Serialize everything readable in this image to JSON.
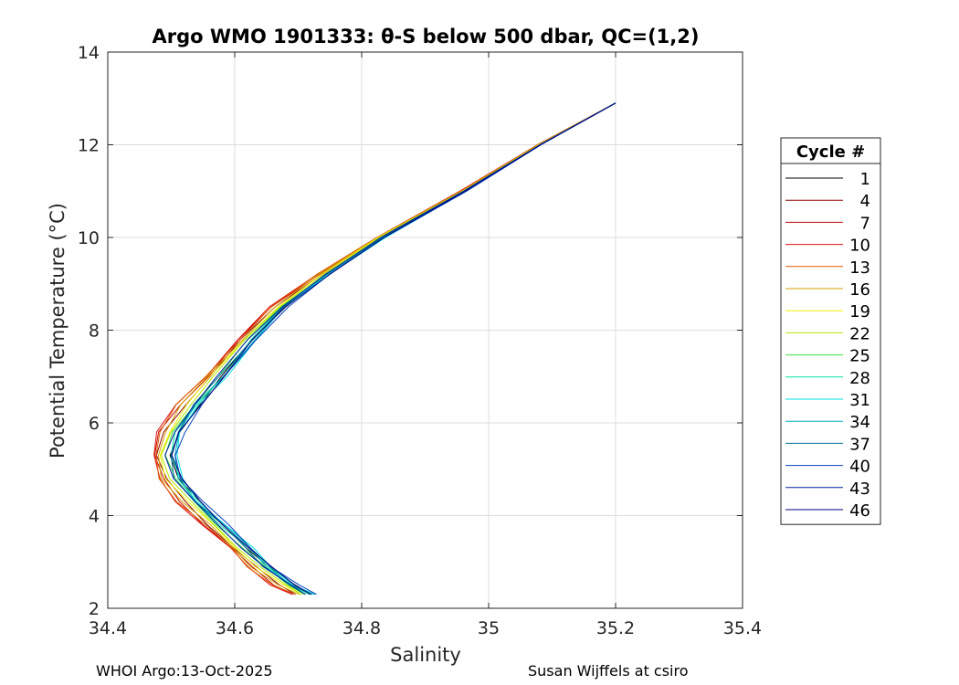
{
  "chart_data": {
    "type": "line",
    "title": "Argo WMO 1901333: θ-S below 500 dbar,  QC=(1,2)",
    "xlabel": "Salinity",
    "ylabel": "Potential Temperature (°C)",
    "xlim": [
      34.4,
      35.4
    ],
    "ylim": [
      2,
      14
    ],
    "xticks": [
      34.4,
      34.6,
      34.8,
      35,
      35.2,
      35.4
    ],
    "xtick_labels": [
      "34.4",
      "34.6",
      "34.8",
      "35",
      "35.2",
      "35.4"
    ],
    "yticks": [
      2,
      4,
      6,
      8,
      10,
      12,
      14
    ],
    "ytick_labels": [
      "2",
      "4",
      "6",
      "8",
      "10",
      "12",
      "14"
    ],
    "grid": true,
    "legend_title": "Cycle #",
    "legend_position": "right",
    "series": [
      {
        "name": "1",
        "color": "#000000",
        "offset": 0.012
      },
      {
        "name": "4",
        "color": "#8b0000",
        "offset": -0.01
      },
      {
        "name": "7",
        "color": "#c00000",
        "offset": -0.016
      },
      {
        "name": "10",
        "color": "#e01010",
        "offset": -0.02
      },
      {
        "name": "13",
        "color": "#e05a00",
        "offset": -0.018
      },
      {
        "name": "16",
        "color": "#d4a000",
        "offset": -0.012
      },
      {
        "name": "19",
        "color": "#f0f000",
        "offset": -0.006
      },
      {
        "name": "22",
        "color": "#b0e800",
        "offset": -0.002
      },
      {
        "name": "25",
        "color": "#40e040",
        "offset": 0.004
      },
      {
        "name": "28",
        "color": "#00e0a0",
        "offset": 0.01
      },
      {
        "name": "31",
        "color": "#00e0e0",
        "offset": 0.016
      },
      {
        "name": "34",
        "color": "#00b0c0",
        "offset": 0.012
      },
      {
        "name": "37",
        "color": "#0070a0",
        "offset": 0.008
      },
      {
        "name": "40",
        "color": "#0040c0",
        "offset": 0.018
      },
      {
        "name": "43",
        "color": "#0020a0",
        "offset": 0.004
      },
      {
        "name": "46",
        "color": "#000080",
        "offset": 0.014
      }
    ],
    "base_profile": {
      "theta": [
        12.9,
        12.0,
        11.0,
        10.0,
        9.2,
        8.5,
        7.8,
        7.0,
        6.4,
        5.8,
        5.3,
        4.8,
        4.3,
        3.8,
        3.3,
        2.9,
        2.5,
        2.3
      ],
      "salinity": [
        35.2,
        35.08,
        34.96,
        34.83,
        34.74,
        34.67,
        34.62,
        34.57,
        34.53,
        34.5,
        34.49,
        34.5,
        34.53,
        34.57,
        34.61,
        34.64,
        34.68,
        34.71
      ]
    }
  },
  "footer": {
    "left": "WHOI Argo:13-Oct-2025",
    "right": "Susan Wijffels at csiro"
  }
}
